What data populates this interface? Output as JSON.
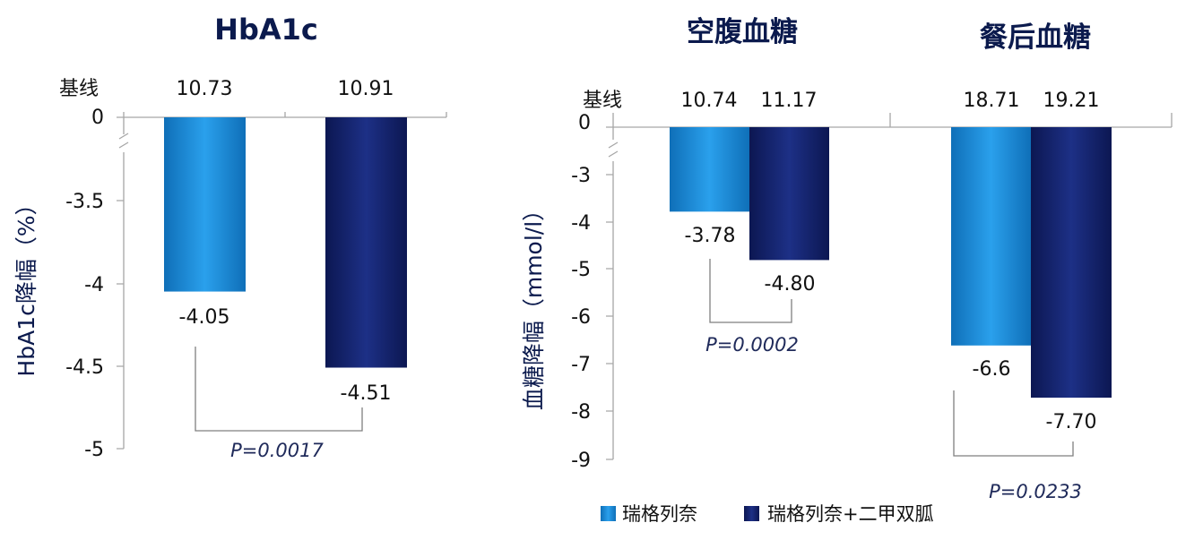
{
  "colors": {
    "light": "#1c8ad9",
    "dark": "#14236b",
    "title": "#0b1a4d"
  },
  "legend": [
    {
      "label": "瑞格列奈",
      "color": "#1c8ad9"
    },
    {
      "label": "瑞格列奈+二甲双胍",
      "color": "#14236b"
    }
  ],
  "chart_data": [
    {
      "type": "bar",
      "title": "HbA1c",
      "ylabel": "HbA1c降幅（%）",
      "baseline_label": "基线",
      "baselines": [
        "10.73",
        "10.91"
      ],
      "ylim": [
        -5,
        0
      ],
      "axis_break": true,
      "yticks": [
        "0",
        "-3.5",
        "-4",
        "-4.5",
        "-5"
      ],
      "groups": [
        {
          "bars": [
            {
              "series": "瑞格列奈",
              "value": -4.05,
              "label": "-4.05"
            },
            {
              "series": "瑞格列奈+二甲双胍",
              "value": -4.51,
              "label": "-4.51"
            }
          ]
        }
      ],
      "p_values": [
        "P=0.0017"
      ]
    },
    {
      "type": "bar",
      "titles": [
        "空腹血糖",
        "餐后血糖"
      ],
      "ylabel": "血糖降幅（mmol/l）",
      "baseline_label": "基线",
      "baselines": [
        "10.74",
        "11.17",
        "18.71",
        "19.21"
      ],
      "ylim": [
        -9,
        0
      ],
      "axis_break": true,
      "yticks": [
        "0",
        "-3",
        "-4",
        "-5",
        "-6",
        "-7",
        "-8",
        "-9"
      ],
      "groups": [
        {
          "name": "空腹血糖",
          "bars": [
            {
              "series": "瑞格列奈",
              "value": -3.78,
              "label": "-3.78"
            },
            {
              "series": "瑞格列奈+二甲双胍",
              "value": -4.8,
              "label": "-4.80"
            }
          ]
        },
        {
          "name": "餐后血糖",
          "bars": [
            {
              "series": "瑞格列奈",
              "value": -6.6,
              "label": "-6.6"
            },
            {
              "series": "瑞格列奈+二甲双胍",
              "value": -7.7,
              "label": "-7.70"
            }
          ]
        }
      ],
      "p_values": [
        "P=0.0002",
        "P=0.0233"
      ]
    }
  ]
}
